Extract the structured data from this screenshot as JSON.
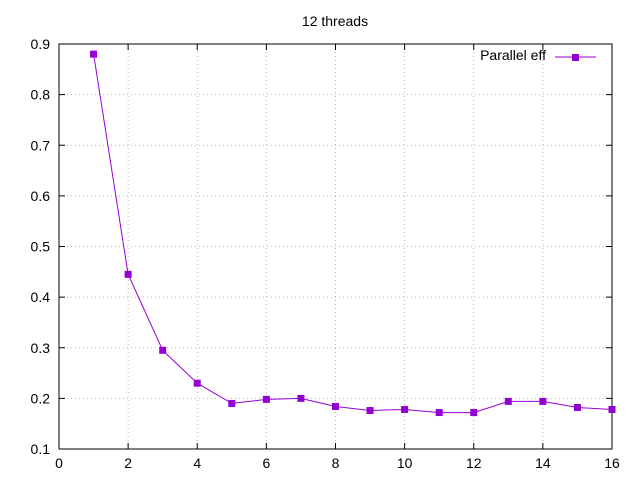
{
  "chart_data": {
    "type": "line",
    "title": "12 threads",
    "xlabel": "",
    "ylabel": "",
    "xlim": [
      0,
      16
    ],
    "ylim": [
      0.1,
      0.9
    ],
    "xticks": [
      0,
      2,
      4,
      6,
      8,
      10,
      12,
      14,
      16
    ],
    "yticks": [
      0.1,
      0.2,
      0.3,
      0.4,
      0.5,
      0.6,
      0.7,
      0.8,
      0.9
    ],
    "grid": true,
    "legend_position": "top-right",
    "series": [
      {
        "name": "Parallel eff",
        "color": "#9400d3",
        "marker": "square",
        "x": [
          1,
          2,
          3,
          4,
          5,
          6,
          7,
          8,
          9,
          10,
          11,
          12,
          13,
          14,
          15,
          16
        ],
        "values": [
          0.88,
          0.445,
          0.295,
          0.23,
          0.19,
          0.198,
          0.2,
          0.184,
          0.176,
          0.178,
          0.172,
          0.172,
          0.194,
          0.194,
          0.182,
          0.178
        ]
      }
    ]
  }
}
